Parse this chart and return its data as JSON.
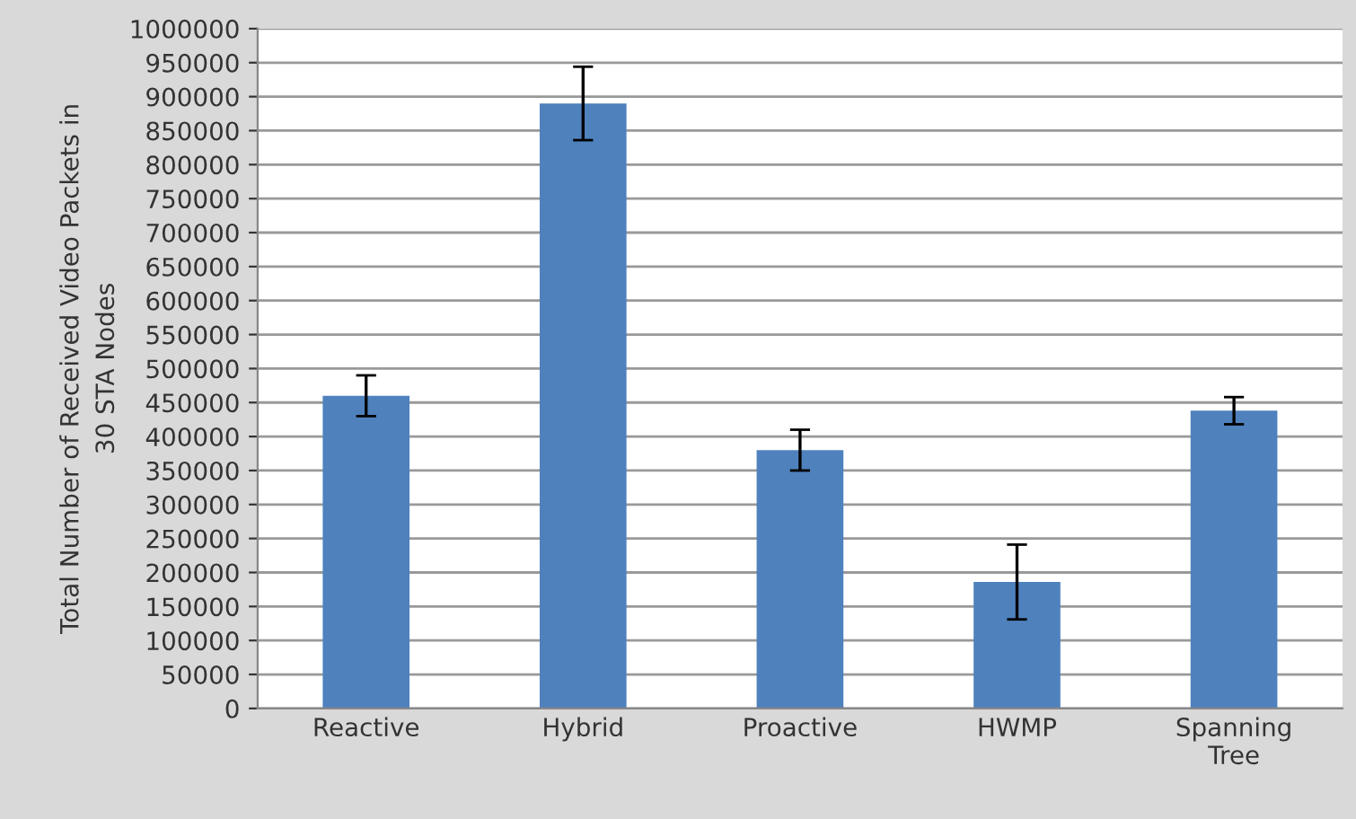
{
  "chart_data": {
    "type": "bar",
    "ylabel": "Total Number of Received Video Packets in\n30 STA Nodes",
    "categories": [
      "Reactive",
      "Hybrid",
      "Proactive",
      "HWMP",
      "Spanning\nTree"
    ],
    "values": [
      460000,
      890000,
      380000,
      186000,
      438000
    ],
    "errors": [
      30000,
      54000,
      30000,
      55000,
      20000
    ],
    "color": "#4f81bd",
    "ylim": [
      0,
      1000000
    ],
    "yticks": [
      0,
      50000,
      100000,
      150000,
      200000,
      250000,
      300000,
      350000,
      400000,
      450000,
      500000,
      550000,
      600000,
      650000,
      700000,
      750000,
      800000,
      850000,
      900000,
      950000,
      1000000
    ],
    "grid": "y"
  }
}
